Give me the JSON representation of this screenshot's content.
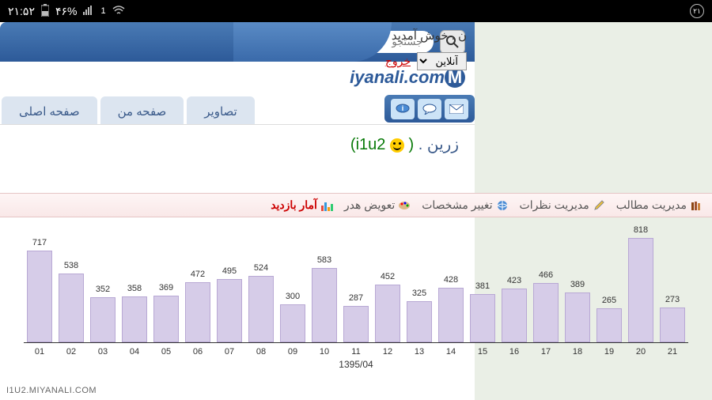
{
  "status_bar": {
    "time": "۲۱:۵۲",
    "battery": "۴۶%",
    "badge": "۲۱"
  },
  "header": {
    "search_placeholder": "جستجو",
    "welcome": "ن . خوش آمدید",
    "status_selected": "آنلاین",
    "logout": "خروج",
    "logo_text": "iyanali.com"
  },
  "nav": {
    "tabs": [
      "صفحه اصلی",
      "صفحه من",
      "تصاویر"
    ]
  },
  "profile": {
    "name": "زرین .",
    "username_open": "(",
    "username": "i1u2",
    "username_close": ")"
  },
  "admin_menu": {
    "items": [
      {
        "label": "مدیریت مطالب",
        "icon": "books"
      },
      {
        "label": "مدیریت نظرات",
        "icon": "pencil"
      },
      {
        "label": "تغییر مشخصات",
        "icon": "globe"
      },
      {
        "label": "تعویض هدر",
        "icon": "palette"
      },
      {
        "label": "آمار بازدید",
        "icon": "chart",
        "active": true
      }
    ]
  },
  "chart": {
    "type": "bar",
    "xlabel": "1395/04",
    "labels": [
      "01",
      "02",
      "03",
      "04",
      "05",
      "06",
      "07",
      "08",
      "09",
      "10",
      "11",
      "12",
      "13",
      "14",
      "15",
      "16",
      "17",
      "18",
      "19",
      "20",
      "21"
    ],
    "values": [
      717,
      538,
      352,
      358,
      369,
      472,
      495,
      524,
      300,
      583,
      287,
      452,
      325,
      428,
      381,
      423,
      466,
      389,
      265,
      818,
      273
    ],
    "ymax": 900,
    "bar_color": "#d6cce8",
    "bar_border": "#b8a8d4",
    "label_fontsize": 11,
    "value_fontsize": 11
  },
  "watermark": "I1U2.MIYANALI.COM"
}
